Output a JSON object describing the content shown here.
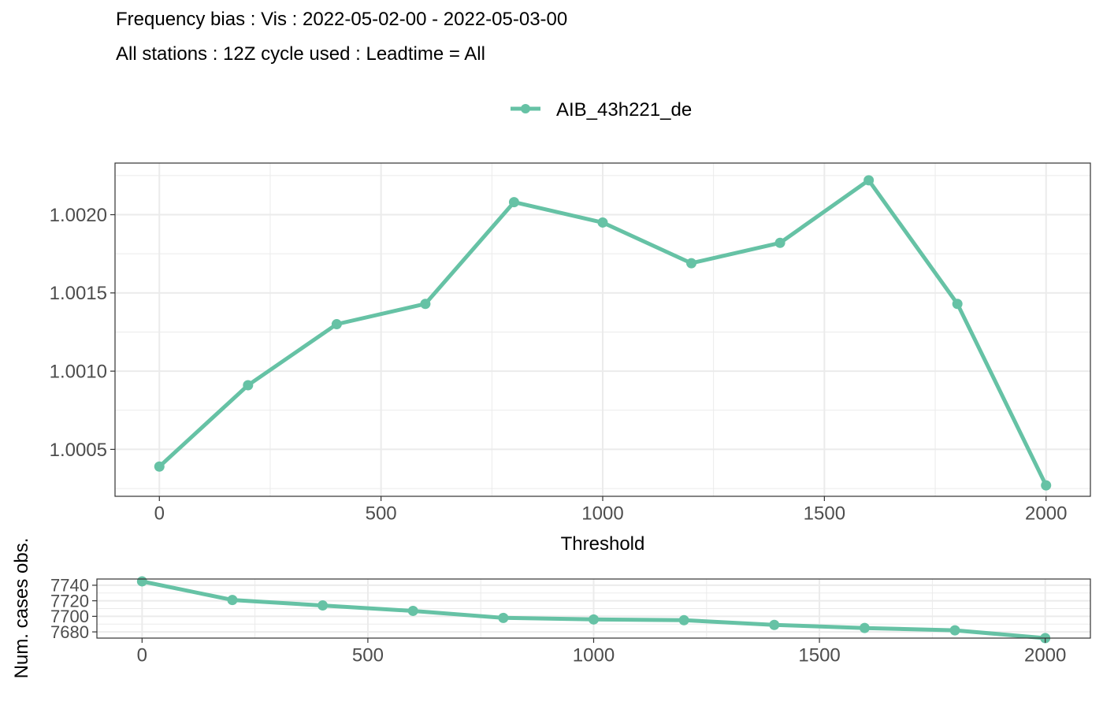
{
  "title": "Frequency bias : Vis : 2022-05-02-00 - 2022-05-03-00",
  "subtitle": "All stations : 12Z cycle used : Leadtime = All",
  "colors": {
    "series": "#66c2a5",
    "grid": "#ebebeb",
    "axis": "#333333",
    "tick_text": "#4d4d4d"
  },
  "chart_data": [
    {
      "type": "line",
      "title": "Frequency bias : Vis : 2022-05-02-00 - 2022-05-03-00",
      "subtitle": "All stations : 12Z cycle used : Leadtime = All",
      "xlabel": "Threshold",
      "ylabel": "",
      "legend": {
        "placement": "top",
        "entries": [
          "AIB_43h221_de"
        ]
      },
      "grid": true,
      "xlim": [
        -100,
        2100
      ],
      "ylim": [
        1.0002,
        1.00233
      ],
      "x_ticks": [
        0,
        500,
        1000,
        1500,
        2000
      ],
      "y_ticks": [
        1.0005,
        1.001,
        1.0015,
        1.002
      ],
      "y_tick_labels": [
        "1.0005",
        "1.0010",
        "1.0015",
        "1.0020"
      ],
      "x": [
        0,
        200,
        400,
        600,
        800,
        1000,
        1200,
        1400,
        1600,
        1800,
        2000
      ],
      "series": [
        {
          "name": "AIB_43h221_de",
          "values": [
            1.00039,
            1.00091,
            1.0013,
            1.00143,
            1.00208,
            1.00195,
            1.00169,
            1.00182,
            1.00222,
            1.00143,
            1.00027
          ]
        }
      ]
    },
    {
      "type": "line",
      "xlabel": "",
      "ylabel": "Num. cases obs.",
      "grid": true,
      "xlim": [
        -100,
        2100
      ],
      "ylim": [
        7672,
        7748
      ],
      "x_ticks": [
        0,
        500,
        1000,
        1500,
        2000
      ],
      "y_ticks": [
        7680,
        7700,
        7720,
        7740
      ],
      "x": [
        0,
        200,
        400,
        600,
        800,
        1000,
        1200,
        1400,
        1600,
        1800,
        2000
      ],
      "series": [
        {
          "name": "AIB_43h221_de",
          "values": [
            7745,
            7721,
            7714,
            7707,
            7698,
            7696,
            7695,
            7689,
            7685,
            7682,
            7672
          ]
        }
      ]
    }
  ]
}
